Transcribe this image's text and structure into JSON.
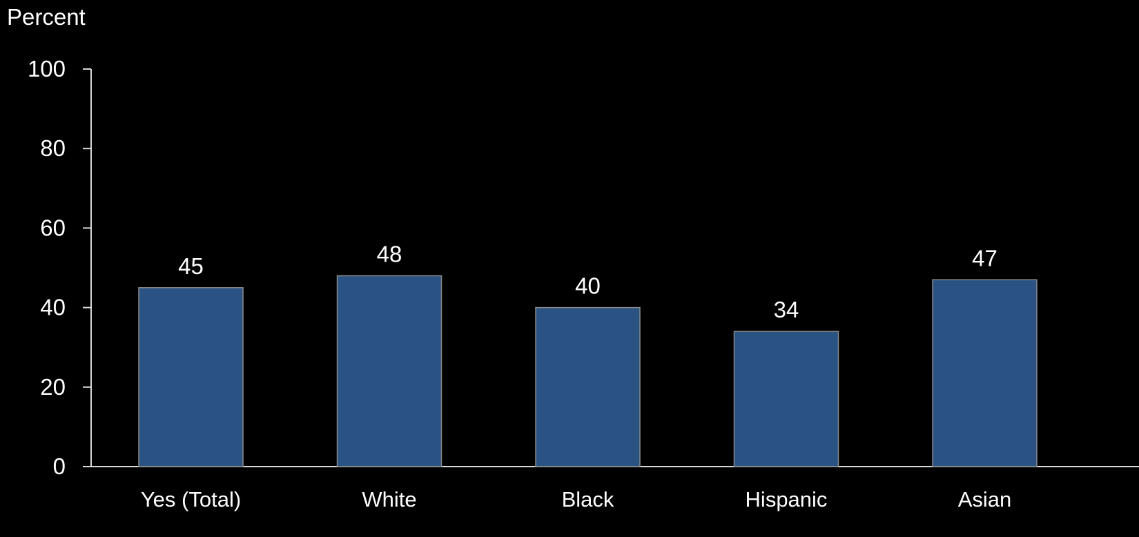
{
  "chart_data": {
    "type": "bar",
    "ylabel": "Percent",
    "xlabel": "",
    "categories": [
      "Yes (Total)",
      "White",
      "Black",
      "Hispanic",
      "Asian"
    ],
    "values": [
      45,
      48,
      40,
      34,
      47
    ],
    "data_labels": [
      "45",
      "48",
      "40",
      "34",
      "47"
    ],
    "ylim": [
      0,
      100
    ],
    "yticks": [
      0,
      20,
      40,
      60,
      80,
      100
    ],
    "grid": false,
    "legend": "none",
    "colors": {
      "background": "#000000",
      "bar_fill": "#2a5384",
      "bar_stroke": "#8a8a8a",
      "axis": "#d9d9d9",
      "text": "#ffffff"
    }
  }
}
